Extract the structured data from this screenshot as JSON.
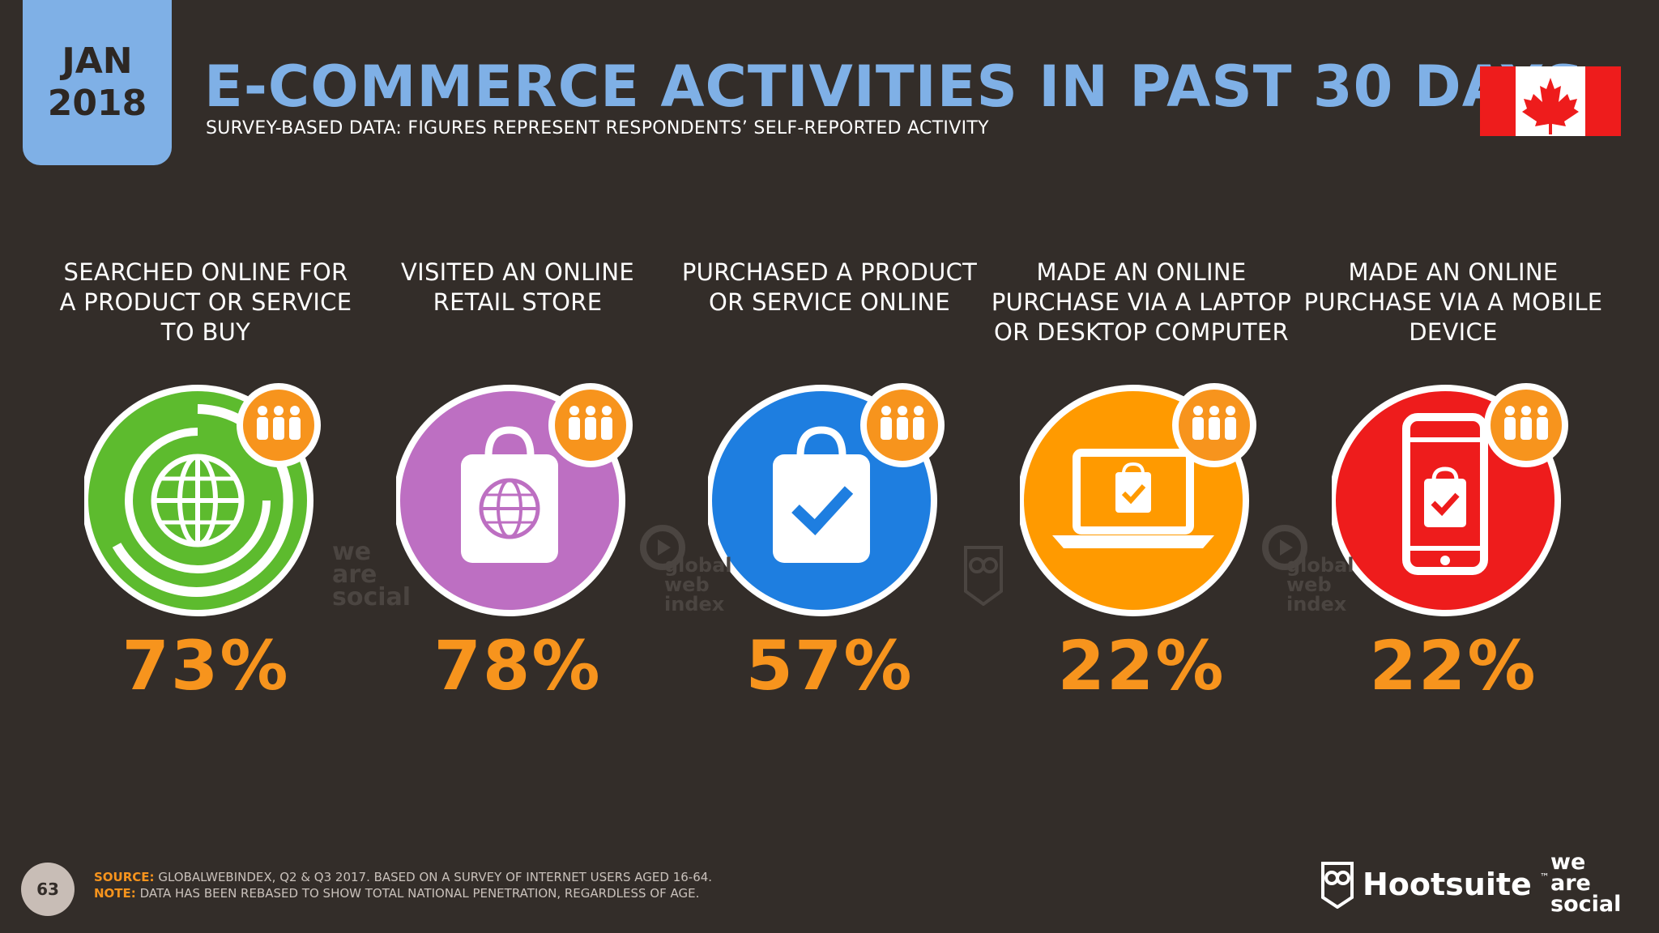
{
  "header": {
    "date_month": "JAN",
    "date_year": "2018",
    "title": "E-COMMERCE ACTIVITIES IN PAST 30 DAYS",
    "subtitle": "SURVEY-BASED DATA: FIGURES REPRESENT RESPONDENTS’ SELF-REPORTED ACTIVITY"
  },
  "colors": {
    "background": "#332d29",
    "title_blue": "#7fb0e6",
    "value_orange": "#f7941d",
    "green": "#5dbb2e",
    "purple": "#bd6fc2",
    "blue": "#1e7ee0",
    "orange": "#ff9a00",
    "red": "#ee1c1c"
  },
  "chart_data": {
    "type": "bar",
    "unit": "%",
    "categories": [
      "SEARCHED ONLINE FOR A PRODUCT OR SERVICE TO BUY",
      "VISITED AN ONLINE RETAIL STORE",
      "PURCHASED A PRODUCT OR SERVICE ONLINE",
      "MADE AN ONLINE PURCHASE VIA A LAPTOP OR DESKTOP COMPUTER",
      "MADE AN ONLINE PURCHASE VIA A MOBILE DEVICE"
    ],
    "values": [
      73,
      78,
      57,
      22,
      22
    ],
    "labels": [
      "73%",
      "78%",
      "57%",
      "22%",
      "22%"
    ],
    "icons": [
      "globe-icon",
      "shopping-bag-globe-icon",
      "shopping-bag-check-icon",
      "laptop-icon",
      "mobile-phone-icon"
    ]
  },
  "watermarks": {
    "we_are_social": "we are social",
    "global_web_index": "global web index"
  },
  "footer": {
    "page_number": "63",
    "source_label": "SOURCE:",
    "source_text": "GLOBALWEBINDEX, Q2 & Q3 2017. BASED ON A SURVEY OF INTERNET USERS AGED 16-64.",
    "note_label": "NOTE:",
    "note_text": "DATA HAS BEEN REBASED TO SHOW TOTAL NATIONAL PENETRATION, REGARDLESS OF AGE.",
    "hootsuite": "Hootsuite",
    "tm": "™",
    "was_line1": "we",
    "was_line2": "are",
    "was_line3": "social"
  }
}
